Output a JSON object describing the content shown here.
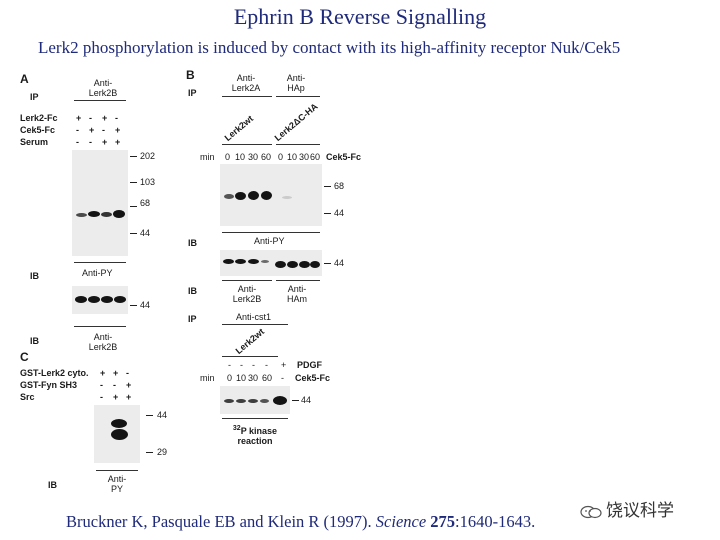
{
  "title": "Ephrin B Reverse Signalling",
  "subtitle": "Lerk2 phosphorylation is induced by contact with its high-affinity receptor Nuk/Cek5",
  "citation": {
    "authors": "Bruckner K, Pasquale EB and Klein R (1997). ",
    "journal": "Science",
    "volume": "275",
    "pages": ":1640-1643."
  },
  "watermark": {
    "text": "饶议科学",
    "icon": "wechat-icon"
  },
  "panel_a": {
    "letter": "A",
    "ip": "IP",
    "ip_antibody_1": "Anti-",
    "ip_antibody_2": "Lerk2B",
    "rows": [
      {
        "label": "Lerk2-Fc",
        "signs": [
          "+",
          "-",
          "+",
          "-"
        ]
      },
      {
        "label": "Cek5-Fc",
        "signs": [
          "-",
          "+",
          "-",
          "+"
        ]
      },
      {
        "label": "Serum",
        "signs": [
          "-",
          "-",
          "+",
          "+"
        ]
      }
    ],
    "markers": [
      "202",
      "103",
      "68",
      "44"
    ],
    "ib1": "IB",
    "ib1_antibody": "Anti-PY",
    "marker_lower": "44",
    "ib2": "IB",
    "ib2_antibody_1": "Anti-",
    "ib2_antibody_2": "Lerk2B"
  },
  "panel_b": {
    "letter": "B",
    "ip": "IP",
    "ip_left_1": "Anti-",
    "ip_left_2": "Lerk2A",
    "ip_right_1": "Anti-",
    "ip_right_2": "HAp",
    "lane_group_left": "Lerk2wt",
    "lane_group_right": "Lerk2ΔC-HA",
    "min_label": "min",
    "times": [
      "0",
      "10",
      "30",
      "60",
      "0",
      "10",
      "30",
      "60"
    ],
    "treatment": "Cek5-Fc",
    "markers": [
      "68",
      "44"
    ],
    "ib1": "IB",
    "ib1_antibody": "Anti-PY",
    "marker_mid": "44",
    "ib2": "IB",
    "ib2_left_1": "Anti-",
    "ib2_left_2": "Lerk2B",
    "ib2_right_1": "Anti-",
    "ib2_right_2": "HAm",
    "ip2": "IP",
    "ip2_antibody": "Anti-cst1",
    "lane_group_2": "Lerk2wt",
    "pdgf_signs": [
      "-",
      "-",
      "-",
      "-",
      "+"
    ],
    "pdgf_label": "PDGF",
    "times_2": [
      "0",
      "10",
      "30",
      "60",
      "-"
    ],
    "treatment_2": "Cek5-Fc",
    "marker_lower": "44",
    "assay_1": "32P kinase",
    "assay_sup": "32",
    "assay_main": "P kinase",
    "assay_2": "reaction"
  },
  "panel_c": {
    "letter": "C",
    "rows": [
      {
        "label": "GST-Lerk2 cyto.",
        "signs": [
          "+",
          "+",
          "-"
        ]
      },
      {
        "label": "GST-Fyn SH3",
        "signs": [
          "-",
          "-",
          "+"
        ]
      },
      {
        "label": "Src",
        "signs": [
          "-",
          "+",
          "+"
        ]
      }
    ],
    "markers": [
      "44",
      "29"
    ],
    "ib": "IB",
    "ib_antibody_1": "Anti-",
    "ib_antibody_2": "PY"
  }
}
